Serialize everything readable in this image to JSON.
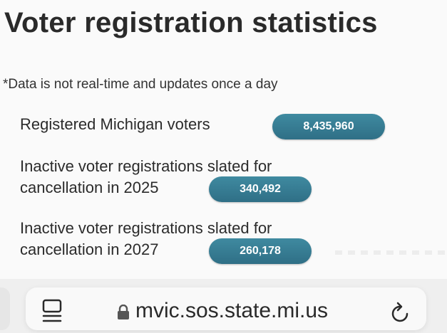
{
  "page": {
    "title": "Voter registration statistics",
    "note": "*Data is not real-time and updates once a day"
  },
  "stats": [
    {
      "label_lines": [
        "Registered Michigan voters"
      ],
      "value": "8,435,960"
    },
    {
      "label_lines": [
        "Inactive voter registrations slated for",
        "cancellation in 2025"
      ],
      "value": "340,492"
    },
    {
      "label_lines": [
        "Inactive voter registrations slated for",
        "cancellation in 2027"
      ],
      "value": "260,178"
    }
  ],
  "browser": {
    "url": "mvic.sos.state.mi.us",
    "icons": [
      "tabs-icon",
      "lock-icon",
      "reload-icon"
    ]
  },
  "colors": {
    "pill": "#347a91",
    "pill_text": "#ffffff",
    "page_bg": "#fafafa",
    "toolbar_bg": "#efefef"
  }
}
